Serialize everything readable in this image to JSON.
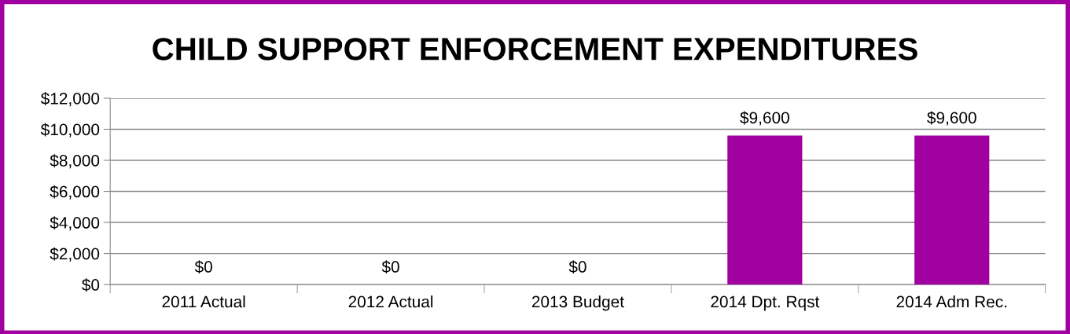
{
  "chart_data": {
    "type": "bar",
    "title": "CHILD SUPPORT ENFORCEMENT EXPENDITURES",
    "categories": [
      "2011 Actual",
      "2012 Actual",
      "2013 Budget",
      "2014 Dpt. Rqst",
      "2014 Adm Rec."
    ],
    "values": [
      0,
      0,
      0,
      9600,
      9600
    ],
    "value_labels": [
      "$0",
      "$0",
      "$0",
      "$9,600",
      "$9,600"
    ],
    "color": "#a000a0",
    "ylim": [
      0,
      12000
    ],
    "yticks": [
      {
        "value": 0,
        "label": "$0"
      },
      {
        "value": 2000,
        "label": "$2,000"
      },
      {
        "value": 4000,
        "label": "$4,000"
      },
      {
        "value": 6000,
        "label": "$6,000"
      },
      {
        "value": 8000,
        "label": "$8,000"
      },
      {
        "value": 10000,
        "label": "$10,000"
      },
      {
        "value": 12000,
        "label": "$12,000"
      }
    ],
    "grid": "y",
    "legend": false
  }
}
